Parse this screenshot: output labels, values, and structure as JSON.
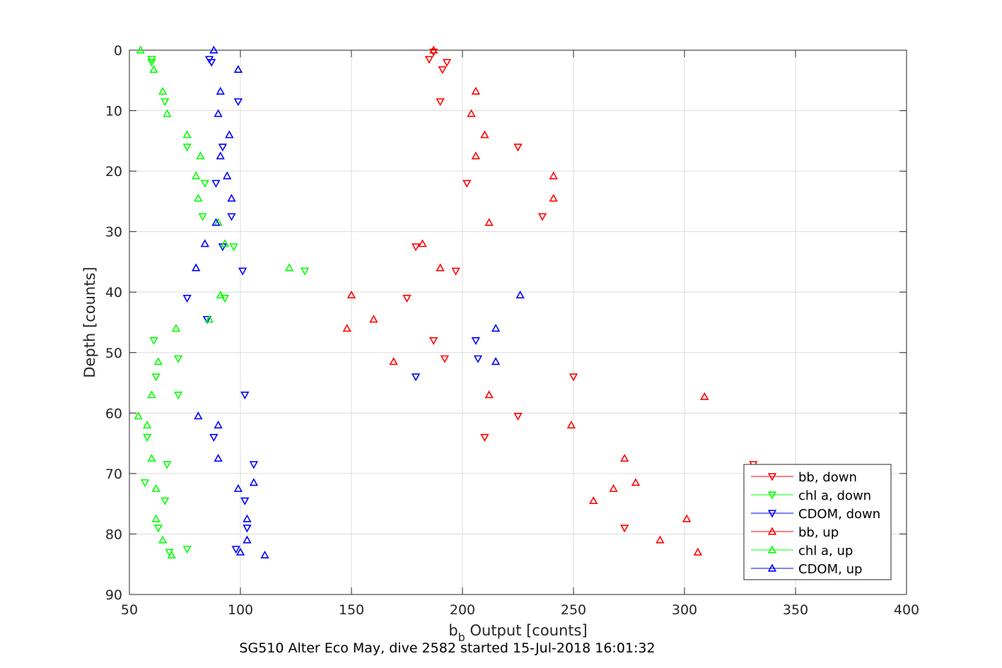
{
  "chart_data": {
    "type": "scatter",
    "xlim": [
      50,
      400
    ],
    "ylim": [
      0,
      90
    ],
    "y_reversed": true,
    "grid": true,
    "xticks": [
      50,
      100,
      150,
      200,
      250,
      300,
      350,
      400
    ],
    "yticks": [
      0,
      10,
      20,
      30,
      40,
      50,
      60,
      70,
      80,
      90
    ],
    "xlabel_main": "b",
    "xlabel_sub": "b",
    "xlabel_rest": " Output [counts]",
    "ylabel": "Depth [counts]",
    "caption": "SG510 Alter Eco May, dive 2582 started 15-Jul-2018 16:01:32",
    "legend_position": "bottom-right",
    "series": [
      {
        "name": "bb, down",
        "color": "#ff0000",
        "marker": "triangle-down",
        "points": [
          [
            187,
            0.3
          ],
          [
            185,
            1.5
          ],
          [
            193,
            2.0
          ],
          [
            191,
            3.2
          ],
          [
            190,
            8.5
          ],
          [
            225,
            16
          ],
          [
            202,
            22
          ],
          [
            236,
            27.5
          ],
          [
            179,
            32.5
          ],
          [
            197,
            36.5
          ],
          [
            175,
            41
          ],
          [
            187,
            48
          ],
          [
            192,
            51
          ],
          [
            250,
            54
          ],
          [
            225,
            60.5
          ],
          [
            210,
            64
          ],
          [
            331,
            68.5
          ],
          [
            273,
            79
          ]
        ]
      },
      {
        "name": "chl a, down",
        "color": "#00ff00",
        "marker": "triangle-down",
        "points": [
          [
            60,
            1.5
          ],
          [
            60,
            2.0
          ],
          [
            66,
            8.5
          ],
          [
            76,
            16
          ],
          [
            84,
            22
          ],
          [
            83,
            27.5
          ],
          [
            97,
            32.5
          ],
          [
            129,
            36.5
          ],
          [
            93,
            41
          ],
          [
            61,
            48
          ],
          [
            72,
            51
          ],
          [
            62,
            54
          ],
          [
            72,
            57
          ],
          [
            58,
            64
          ],
          [
            67,
            68.5
          ],
          [
            57,
            71.5
          ],
          [
            66,
            74.5
          ],
          [
            63,
            79
          ],
          [
            76,
            82.5
          ],
          [
            68,
            83
          ]
        ]
      },
      {
        "name": "CDOM, down",
        "color": "#0000ff",
        "marker": "triangle-down",
        "points": [
          [
            86,
            1.5
          ],
          [
            87,
            2.0
          ],
          [
            99,
            8.5
          ],
          [
            92,
            16
          ],
          [
            89,
            22
          ],
          [
            96,
            27.5
          ],
          [
            92,
            32.5
          ],
          [
            101,
            36.5
          ],
          [
            76,
            41
          ],
          [
            85,
            44.5
          ],
          [
            206,
            48
          ],
          [
            207,
            51
          ],
          [
            179,
            54
          ],
          [
            102,
            57
          ],
          [
            88,
            64
          ],
          [
            106,
            68.5
          ],
          [
            102,
            74.5
          ],
          [
            103,
            79
          ],
          [
            98,
            82.5
          ]
        ]
      },
      {
        "name": "bb, up",
        "color": "#ff0000",
        "marker": "triangle-up",
        "points": [
          [
            187,
            0
          ],
          [
            206,
            6.8
          ],
          [
            204,
            10.5
          ],
          [
            210,
            14
          ],
          [
            206,
            17.5
          ],
          [
            241,
            20.8
          ],
          [
            241,
            24.5
          ],
          [
            212,
            28.5
          ],
          [
            182,
            32
          ],
          [
            190,
            36
          ],
          [
            150,
            40.5
          ],
          [
            160,
            44.5
          ],
          [
            148,
            46
          ],
          [
            169,
            51.5
          ],
          [
            212,
            57
          ],
          [
            309,
            57.3
          ],
          [
            249,
            62
          ],
          [
            273,
            67.5
          ],
          [
            278,
            71.5
          ],
          [
            268,
            72.5
          ],
          [
            259,
            74.5
          ],
          [
            301,
            77.5
          ],
          [
            289,
            81
          ],
          [
            306,
            83
          ]
        ]
      },
      {
        "name": "chl a, up",
        "color": "#00ff00",
        "marker": "triangle-up",
        "points": [
          [
            55,
            0
          ],
          [
            61,
            3.2
          ],
          [
            65,
            6.8
          ],
          [
            67,
            10.5
          ],
          [
            76,
            14
          ],
          [
            82,
            17.5
          ],
          [
            80,
            20.8
          ],
          [
            81,
            24.5
          ],
          [
            90,
            28.5
          ],
          [
            93,
            32
          ],
          [
            122,
            36
          ],
          [
            91,
            40.5
          ],
          [
            86,
            44.5
          ],
          [
            71,
            46
          ],
          [
            63,
            51.5
          ],
          [
            60,
            57
          ],
          [
            54,
            60.5
          ],
          [
            58,
            62
          ],
          [
            60,
            67.5
          ],
          [
            62,
            72.5
          ],
          [
            62,
            77.5
          ],
          [
            65,
            81
          ],
          [
            69,
            83.5
          ]
        ]
      },
      {
        "name": "CDOM, up",
        "color": "#0000ff",
        "marker": "triangle-up",
        "points": [
          [
            88,
            0
          ],
          [
            99,
            3.2
          ],
          [
            91,
            6.8
          ],
          [
            90,
            10.5
          ],
          [
            95,
            14
          ],
          [
            91,
            17.5
          ],
          [
            94,
            20.8
          ],
          [
            96,
            24.5
          ],
          [
            89,
            28.5
          ],
          [
            84,
            32
          ],
          [
            80,
            36
          ],
          [
            226,
            40.5
          ],
          [
            215,
            46
          ],
          [
            215,
            51.5
          ],
          [
            81,
            60.5
          ],
          [
            90,
            62
          ],
          [
            90,
            67.5
          ],
          [
            106,
            71.5
          ],
          [
            99,
            72.5
          ],
          [
            103,
            77.5
          ],
          [
            103,
            81
          ],
          [
            100,
            83
          ],
          [
            111,
            83.5
          ]
        ]
      }
    ]
  }
}
